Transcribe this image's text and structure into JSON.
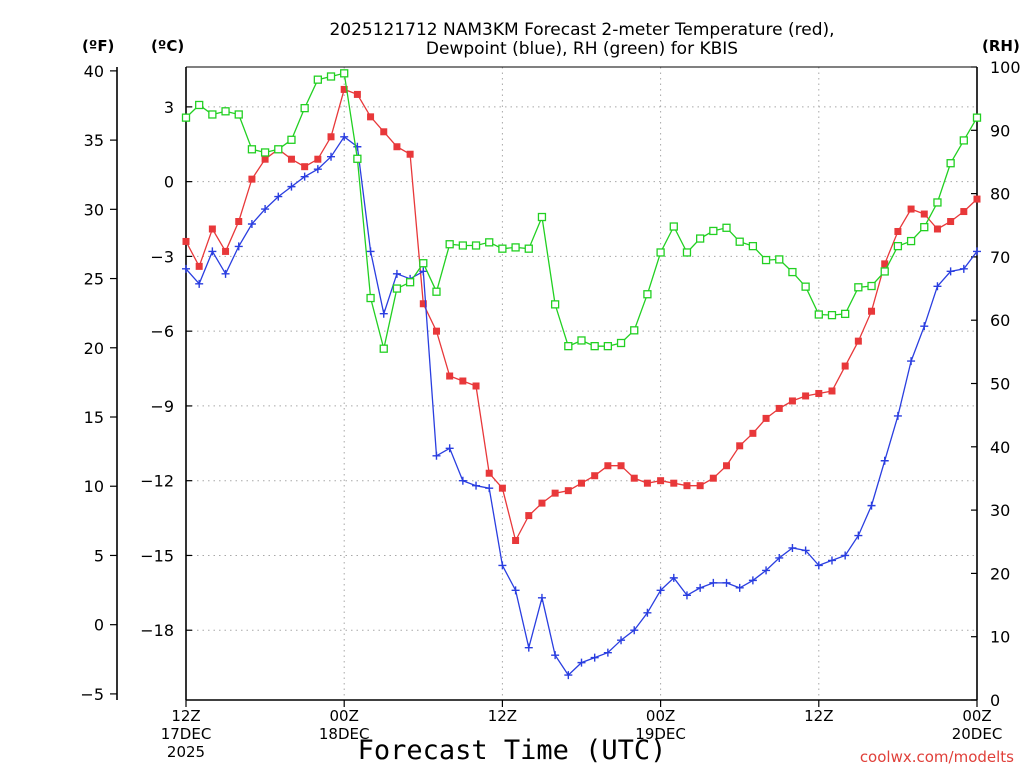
{
  "chart_data": {
    "type": "line",
    "title_lines": [
      "2025121712 NAM3KM Forecast 2-meter Temperature (red),",
      "Dewpoint (blue), RH (green) for KBIS"
    ],
    "unit_labels": {
      "fahrenheit": "(ºF)",
      "celsius": "(ºC)",
      "rh": "(RH)"
    },
    "xlabel": "Forecast Time (UTC)",
    "credit": "coolwx.com/modelts",
    "x_ticks": [
      {
        "hour": 0,
        "lines": [
          "12Z",
          "17DEC",
          "2025"
        ]
      },
      {
        "hour": 12,
        "lines": [
          "00Z",
          "18DEC"
        ]
      },
      {
        "hour": 24,
        "lines": [
          "12Z"
        ]
      },
      {
        "hour": 36,
        "lines": [
          "00Z",
          "19DEC"
        ]
      },
      {
        "hour": 48,
        "lines": [
          "12Z"
        ]
      },
      {
        "hour": 60,
        "lines": [
          "00Z",
          "20DEC"
        ]
      }
    ],
    "x_range_hours": [
      0,
      60
    ],
    "celsius_axis": {
      "range": [
        -20.8,
        4.6
      ],
      "tick_values": [
        3,
        0,
        -3,
        -6,
        -9,
        -12,
        -15,
        -18
      ],
      "tick_labels": [
        "3",
        "0",
        "−3",
        "−6",
        "−9",
        "−12",
        "−15",
        "−18"
      ]
    },
    "fahrenheit_ticks": [
      "40",
      "35",
      "30",
      "25",
      "20",
      "15",
      "10",
      "5",
      "0",
      "−5"
    ],
    "rh_axis": {
      "range": [
        0,
        100
      ],
      "tick_values": [
        100,
        90,
        80,
        70,
        60,
        50,
        40,
        30,
        20,
        10,
        0
      ],
      "tick_labels": [
        "100",
        "90",
        "80",
        "70",
        "60",
        "50",
        "40",
        "30",
        "20",
        "10",
        "0"
      ]
    },
    "series": [
      {
        "name": "2-meter Temperature (°C)",
        "axis": "celsius",
        "color": "#e8383a",
        "marker": "filled-square",
        "x": [
          0,
          1,
          2,
          3,
          4,
          5,
          6,
          7,
          8,
          9,
          10,
          11,
          12,
          13,
          14,
          15,
          16,
          17,
          18,
          19,
          20,
          21,
          22,
          23,
          24,
          25,
          26,
          27,
          28,
          29,
          30,
          31,
          32,
          33,
          34,
          35,
          36,
          37,
          38,
          39,
          40,
          41,
          42,
          43,
          44,
          45,
          46,
          47,
          48,
          49,
          50,
          51,
          52,
          53,
          54,
          55,
          56,
          57,
          58,
          59,
          60
        ],
        "values": [
          -2.4,
          -3.4,
          -1.9,
          -2.8,
          -1.6,
          0.1,
          0.9,
          1.3,
          0.9,
          0.6,
          0.9,
          1.8,
          3.7,
          3.5,
          2.6,
          2.0,
          1.4,
          1.1,
          -4.9,
          -6.0,
          -7.8,
          -8.0,
          -8.2,
          -11.7,
          -12.3,
          -14.4,
          -13.4,
          -12.9,
          -12.5,
          -12.4,
          -12.1,
          -11.8,
          -11.4,
          -11.4,
          -11.9,
          -12.1,
          -12.0,
          -12.1,
          -12.2,
          -12.2,
          -11.9,
          -11.4,
          -10.6,
          -10.1,
          -9.5,
          -9.1,
          -8.8,
          -8.6,
          -8.5,
          -8.4,
          -7.4,
          -6.4,
          -5.2,
          -3.3,
          -2.0,
          -1.1,
          -1.3,
          -1.9,
          -1.6,
          -1.2,
          -0.7
        ]
      },
      {
        "name": "Dewpoint (°C)",
        "axis": "celsius",
        "color": "#2a3ee0",
        "marker": "plus",
        "x": [
          0,
          1,
          2,
          3,
          4,
          5,
          6,
          7,
          8,
          9,
          10,
          11,
          12,
          13,
          14,
          15,
          16,
          17,
          18,
          19,
          20,
          21,
          22,
          23,
          24,
          25,
          26,
          27,
          28,
          29,
          30,
          31,
          32,
          33,
          34,
          35,
          36,
          37,
          38,
          39,
          40,
          41,
          42,
          43,
          44,
          45,
          46,
          47,
          48,
          49,
          50,
          51,
          52,
          53,
          54,
          55,
          56,
          57,
          58,
          59,
          60
        ],
        "values": [
          -3.5,
          -4.1,
          -2.8,
          -3.7,
          -2.6,
          -1.7,
          -1.1,
          -0.6,
          -0.2,
          0.2,
          0.5,
          1.0,
          1.8,
          1.4,
          -2.8,
          -5.3,
          -3.7,
          -3.9,
          -3.6,
          -11.0,
          -10.7,
          -12.0,
          -12.2,
          -12.3,
          -15.4,
          -16.4,
          -18.7,
          -16.7,
          -19.0,
          -19.8,
          -19.3,
          -19.1,
          -18.9,
          -18.4,
          -18.0,
          -17.3,
          -16.4,
          -15.9,
          -16.6,
          -16.3,
          -16.1,
          -16.1,
          -16.3,
          -16.0,
          -15.6,
          -15.1,
          -14.7,
          -14.8,
          -15.4,
          -15.2,
          -15.0,
          -14.2,
          -13.0,
          -11.2,
          -9.4,
          -7.2,
          -5.8,
          -4.2,
          -3.6,
          -3.5,
          -2.8
        ]
      },
      {
        "name": "RH (%)",
        "axis": "rh",
        "color": "#22d022",
        "marker": "open-square",
        "x": [
          0,
          1,
          2,
          3,
          4,
          5,
          6,
          7,
          8,
          9,
          10,
          11,
          12,
          13,
          14,
          15,
          16,
          17,
          18,
          19,
          20,
          21,
          22,
          23,
          24,
          25,
          26,
          27,
          28,
          29,
          30,
          31,
          32,
          33,
          34,
          35,
          36,
          37,
          38,
          39,
          40,
          41,
          42,
          43,
          44,
          45,
          46,
          47,
          48,
          49,
          50,
          51,
          52,
          53,
          54,
          55,
          56,
          57,
          58,
          59,
          60
        ],
        "values": [
          92,
          94,
          92.5,
          93,
          92.5,
          87,
          86.5,
          87,
          88.5,
          93.5,
          98,
          98.5,
          99,
          85.5,
          63.5,
          55.5,
          65,
          66,
          69,
          64.5,
          72,
          71.8,
          71.8,
          72.3,
          71.3,
          71.5,
          71.3,
          76.3,
          62.5,
          55.9,
          56.8,
          55.9,
          55.9,
          56.4,
          58.4,
          64.1,
          70.7,
          74.8,
          70.7,
          72.9,
          74.1,
          74.6,
          72.4,
          71.7,
          69.5,
          69.6,
          67.6,
          65.3,
          60.9,
          60.8,
          61.0,
          65.2,
          65.4,
          67.7,
          71.7,
          72.5,
          74.7,
          78.6,
          84.8,
          88.4,
          92.0
        ]
      }
    ]
  }
}
